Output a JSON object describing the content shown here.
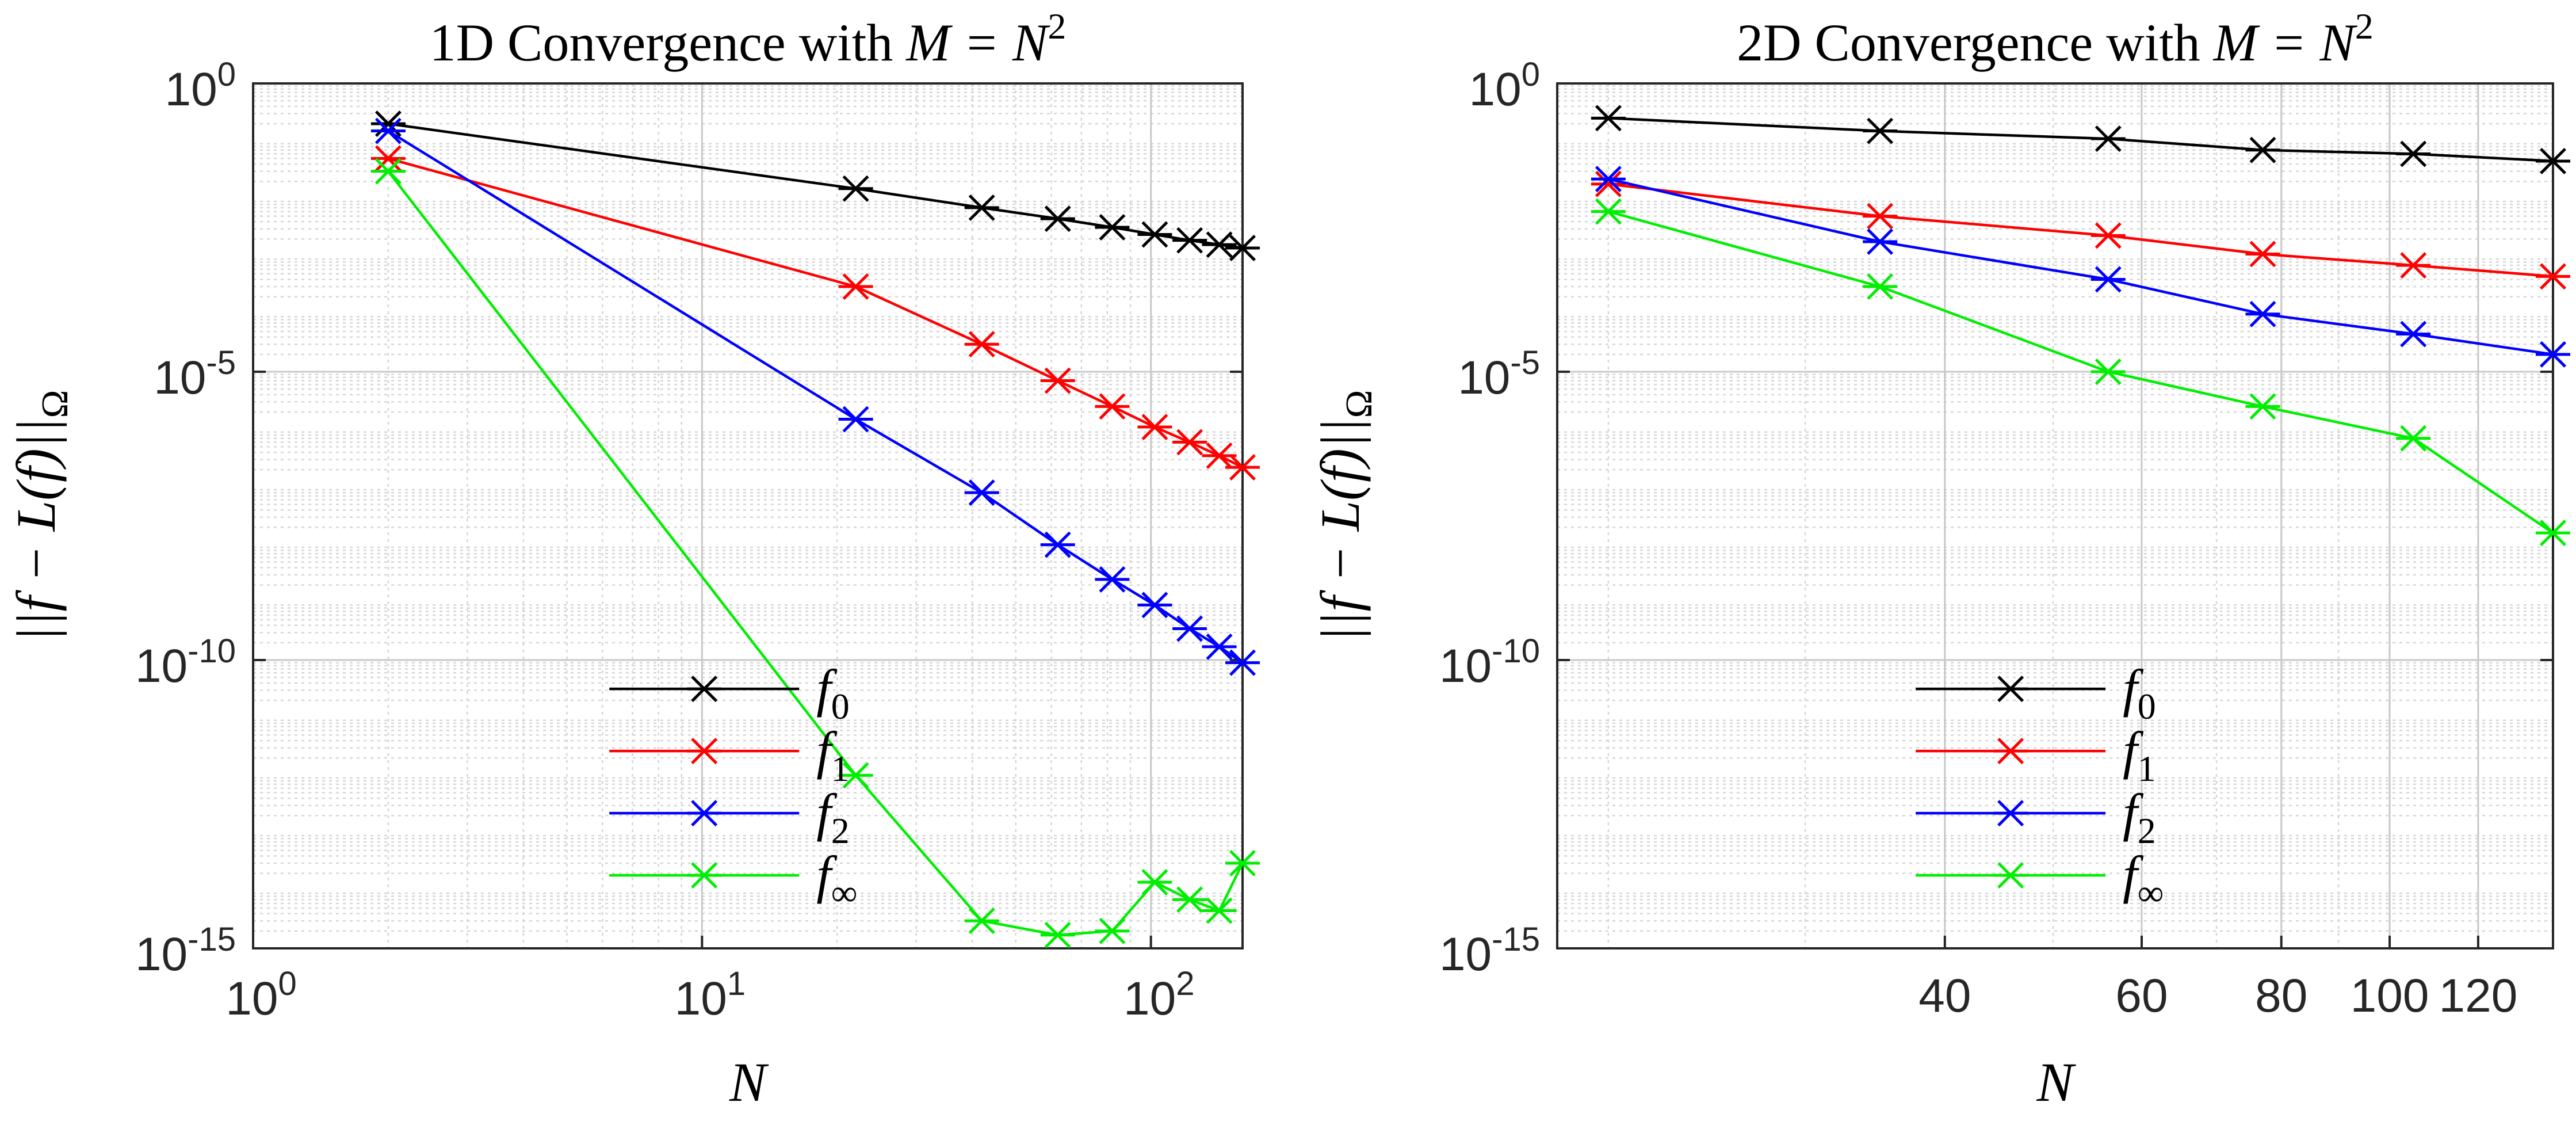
{
  "chart_data": [
    {
      "type": "line",
      "title": "1D Convergence with ",
      "title_math": "M = N",
      "title_sup": "2",
      "xlabel": "N",
      "ylabel": "||f − L(f)||",
      "ylabel_sub": "Ω",
      "xscale": "log",
      "yscale": "log",
      "xlim": [
        1,
        160
      ],
      "ylim": [
        1e-15,
        1
      ],
      "grid": true,
      "minor_grid": true,
      "legend_position": "lower-center",
      "x_ticks": [
        {
          "value": 1,
          "base": "10",
          "exp": "0"
        },
        {
          "value": 10,
          "base": "10",
          "exp": "1"
        },
        {
          "value": 100,
          "base": "10",
          "exp": "2"
        }
      ],
      "y_ticks": [
        {
          "value": 1,
          "base": "10",
          "exp": "0"
        },
        {
          "value": 1e-05,
          "base": "10",
          "exp": "-5"
        },
        {
          "value": 1e-10,
          "base": "10",
          "exp": "-10"
        },
        {
          "value": 1e-15,
          "base": "10",
          "exp": "-15"
        }
      ],
      "x": [
        2,
        22,
        42,
        62,
        82,
        102,
        122,
        142,
        160
      ],
      "series": [
        {
          "name": "f",
          "subscript": "0",
          "color": "#000000",
          "values": [
            0.2,
            0.015,
            0.007,
            0.0045,
            0.0032,
            0.0024,
            0.0019,
            0.0016,
            0.0014
          ]
        },
        {
          "name": "f",
          "subscript": "1",
          "color": "#ff0000",
          "values": [
            0.05,
            0.0003,
            3e-05,
            7e-06,
            2.5e-06,
            1.1e-06,
            6e-07,
            3.5e-07,
            2.2e-07
          ]
        },
        {
          "name": "f",
          "subscript": "2",
          "color": "#0000ff",
          "values": [
            0.15,
            1.5e-06,
            8e-08,
            1e-08,
            2.5e-09,
            9e-10,
            3.5e-10,
            1.7e-10,
            9e-11
          ]
        },
        {
          "name": "f",
          "subscript": "∞",
          "color": "#00ee00",
          "values": [
            0.03,
            1e-12,
            3e-15,
            1.7e-15,
            2e-15,
            1.4e-14,
            7e-15,
            4.5e-15,
            3e-14
          ]
        }
      ]
    },
    {
      "type": "line",
      "title": "2D Convergence with ",
      "title_math": "M = N",
      "title_sup": "2",
      "xlabel": "N",
      "ylabel": "||f − L(f)||",
      "ylabel_sub": "Ω",
      "xscale": "log",
      "yscale": "log",
      "xlim": [
        18,
        140
      ],
      "ylim": [
        1e-15,
        1
      ],
      "grid": true,
      "minor_grid": true,
      "legend_position": "lower-center",
      "x_ticks": [
        {
          "value": 40,
          "label": "40"
        },
        {
          "value": 60,
          "label": "60"
        },
        {
          "value": 80,
          "label": "80"
        },
        {
          "value": 100,
          "label": "100"
        },
        {
          "value": 120,
          "label": "120"
        }
      ],
      "y_ticks": [
        {
          "value": 1,
          "base": "10",
          "exp": "0"
        },
        {
          "value": 1e-05,
          "base": "10",
          "exp": "-5"
        },
        {
          "value": 1e-10,
          "base": "10",
          "exp": "-10"
        },
        {
          "value": 1e-15,
          "base": "10",
          "exp": "-15"
        }
      ],
      "x": [
        20,
        35,
        56,
        77,
        105,
        140
      ],
      "series": [
        {
          "name": "f",
          "subscript": "0",
          "color": "#000000",
          "values": [
            0.25,
            0.15,
            0.11,
            0.07,
            0.06,
            0.045
          ]
        },
        {
          "name": "f",
          "subscript": "1",
          "color": "#ff0000",
          "values": [
            0.018,
            0.005,
            0.0023,
            0.0011,
            0.0007,
            0.00045
          ]
        },
        {
          "name": "f",
          "subscript": "2",
          "color": "#0000ff",
          "values": [
            0.022,
            0.0018,
            0.0004,
            0.0001,
            4.5e-05,
            2e-05
          ]
        },
        {
          "name": "f",
          "subscript": "∞",
          "color": "#00ee00",
          "values": [
            0.006,
            0.0003,
            1e-05,
            2.5e-06,
            7e-07,
            1.6e-08
          ]
        }
      ]
    }
  ]
}
